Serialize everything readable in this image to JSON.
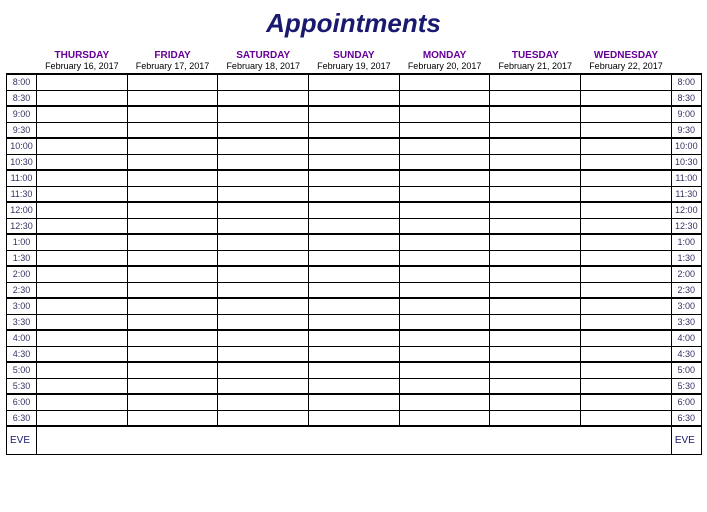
{
  "title": "Appointments",
  "colors": {
    "title": "#191970",
    "day_header": "#660099",
    "time_text": "#333366",
    "eve_text": "#191970",
    "grid": "#000000",
    "background": "#ffffff"
  },
  "days": [
    {
      "name": "THURSDAY",
      "date": "February 16, 2017"
    },
    {
      "name": "FRIDAY",
      "date": "February 17, 2017"
    },
    {
      "name": "SATURDAY",
      "date": "February 18, 2017"
    },
    {
      "name": "SUNDAY",
      "date": "February 19, 2017"
    },
    {
      "name": "MONDAY",
      "date": "February 20, 2017"
    },
    {
      "name": "TUESDAY",
      "date": "February 21, 2017"
    },
    {
      "name": "WEDNESDAY",
      "date": "February 22, 2017"
    }
  ],
  "time_slots": [
    "8:00",
    "8:30",
    "9:00",
    "9:30",
    "10:00",
    "10:30",
    "11:00",
    "11:30",
    "12:00",
    "12:30",
    "1:00",
    "1:30",
    "2:00",
    "2:30",
    "3:00",
    "3:30",
    "4:00",
    "4:30",
    "5:00",
    "5:30",
    "6:00",
    "6:30"
  ],
  "eve_label": "EVE"
}
